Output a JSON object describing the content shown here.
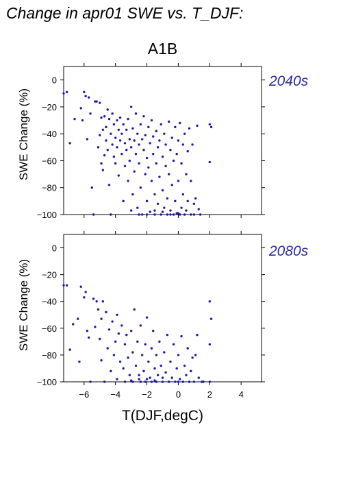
{
  "header": {
    "title": "Change in apr01 SWE vs. T_DJF:",
    "scenario": "A1B"
  },
  "chart_data": [
    {
      "type": "scatter",
      "period_label": "2040s",
      "ylabel": "SWE Change (%)",
      "xlabel": "",
      "xlim": [
        -7.3,
        5.3
      ],
      "ylim": [
        -100,
        10
      ],
      "xticks": [
        -6,
        -4,
        -2,
        0,
        2,
        4
      ],
      "yticks": [
        0,
        -20,
        -40,
        -60,
        -80,
        -100
      ],
      "show_xtick_labels": false,
      "marker_color": "#1c1ca8",
      "grid": false,
      "points": [
        [
          -7.3,
          -10
        ],
        [
          -7.1,
          -9
        ],
        [
          -6.9,
          -47
        ],
        [
          -6.6,
          -29
        ],
        [
          -6.2,
          -21
        ],
        [
          -6.1,
          -30
        ],
        [
          -6.0,
          -9
        ],
        [
          -5.9,
          -12
        ],
        [
          -5.8,
          -44
        ],
        [
          -5.7,
          -13
        ],
        [
          -5.6,
          -25
        ],
        [
          -5.5,
          -80
        ],
        [
          -5.4,
          -100
        ],
        [
          -5.3,
          -16
        ],
        [
          -5.2,
          -16
        ],
        [
          -5.1,
          -50
        ],
        [
          -5.0,
          -41
        ],
        [
          -5.0,
          -17
        ],
        [
          -4.9,
          -28
        ],
        [
          -4.9,
          -62
        ],
        [
          -4.8,
          -37
        ],
        [
          -4.8,
          -67
        ],
        [
          -4.7,
          -56
        ],
        [
          -4.7,
          -27
        ],
        [
          -4.6,
          -35
        ],
        [
          -4.6,
          -45
        ],
        [
          -4.5,
          -52
        ],
        [
          -4.5,
          -22
        ],
        [
          -4.4,
          -78
        ],
        [
          -4.4,
          -29
        ],
        [
          -4.3,
          -40
        ],
        [
          -4.3,
          -100
        ],
        [
          -4.2,
          -48
        ],
        [
          -4.2,
          -25
        ],
        [
          -4.1,
          -57
        ],
        [
          -4.1,
          -33
        ],
        [
          -4.0,
          -43
        ],
        [
          -4.0,
          -62
        ],
        [
          -3.9,
          -30
        ],
        [
          -3.9,
          -50
        ],
        [
          -3.8,
          -37
        ],
        [
          -3.8,
          -71
        ],
        [
          -3.7,
          -45
        ],
        [
          -3.7,
          -28
        ],
        [
          -3.6,
          -55
        ],
        [
          -3.6,
          -40
        ],
        [
          -3.5,
          -90
        ],
        [
          -3.5,
          -33
        ],
        [
          -3.4,
          -47
        ],
        [
          -3.4,
          -64
        ],
        [
          -3.3,
          -37
        ],
        [
          -3.3,
          -52
        ],
        [
          -3.2,
          -29
        ],
        [
          -3.2,
          -75
        ],
        [
          -3.1,
          -44
        ],
        [
          -3.1,
          -60
        ],
        [
          -3.0,
          -20
        ],
        [
          -3.0,
          -50
        ],
        [
          -2.9,
          -36
        ],
        [
          -2.9,
          -85
        ],
        [
          -2.8,
          -45
        ],
        [
          -2.8,
          -68
        ],
        [
          -2.7,
          -25
        ],
        [
          -2.7,
          -55
        ],
        [
          -2.6,
          -40
        ],
        [
          -2.6,
          -95
        ],
        [
          -2.5,
          -48
        ],
        [
          -2.5,
          -62
        ],
        [
          -2.4,
          -33
        ],
        [
          -2.4,
          -80
        ],
        [
          -2.3,
          -44
        ],
        [
          -2.3,
          -100
        ],
        [
          -2.2,
          -52
        ],
        [
          -2.2,
          -27
        ],
        [
          -2.1,
          -70
        ],
        [
          -2.1,
          -41
        ],
        [
          -2.0,
          -58
        ],
        [
          -2.0,
          -90
        ],
        [
          -1.9,
          -35
        ],
        [
          -1.9,
          -65
        ],
        [
          -1.8,
          -47
        ],
        [
          -1.8,
          -98
        ],
        [
          -1.7,
          -30
        ],
        [
          -1.7,
          -75
        ],
        [
          -1.6,
          -55
        ],
        [
          -1.6,
          -42
        ],
        [
          -1.5,
          -85
        ],
        [
          -1.5,
          -100
        ],
        [
          -1.4,
          -38
        ],
        [
          -1.4,
          -62
        ],
        [
          -1.3,
          -50
        ],
        [
          -1.3,
          -92
        ],
        [
          -1.2,
          -45
        ],
        [
          -1.2,
          -72
        ],
        [
          -1.1,
          -33
        ],
        [
          -1.1,
          -100
        ],
        [
          -1.0,
          -57
        ],
        [
          -1.0,
          -82
        ],
        [
          -0.9,
          -40
        ],
        [
          -0.9,
          -95
        ],
        [
          -0.8,
          -64
        ],
        [
          -0.8,
          -48
        ],
        [
          -0.7,
          -88
        ],
        [
          -0.7,
          -100
        ],
        [
          -0.6,
          -31
        ],
        [
          -0.6,
          -70
        ],
        [
          -0.5,
          -52
        ],
        [
          -0.5,
          -97
        ],
        [
          -0.4,
          -43
        ],
        [
          -0.4,
          -78
        ],
        [
          -0.3,
          -60
        ],
        [
          -0.3,
          -100
        ],
        [
          -0.2,
          -35
        ],
        [
          -0.2,
          -90
        ],
        [
          -0.1,
          -55
        ],
        [
          -0.1,
          -99
        ],
        [
          0.0,
          -45
        ],
        [
          0.0,
          -75
        ],
        [
          0.1,
          -32
        ],
        [
          0.1,
          -100
        ],
        [
          0.2,
          -62
        ],
        [
          0.2,
          -95
        ],
        [
          0.3,
          -48
        ],
        [
          0.3,
          -85
        ],
        [
          0.4,
          -40
        ],
        [
          0.4,
          -100
        ],
        [
          0.5,
          -70
        ],
        [
          0.5,
          -97
        ],
        [
          0.6,
          -53
        ],
        [
          0.6,
          -90
        ],
        [
          0.7,
          -36
        ],
        [
          0.8,
          -100
        ],
        [
          0.8,
          -75
        ],
        [
          0.9,
          -48
        ],
        [
          1.0,
          -92
        ],
        [
          1.0,
          -100
        ],
        [
          1.1,
          -88
        ],
        [
          1.2,
          -34
        ],
        [
          1.3,
          -96
        ],
        [
          1.4,
          -100
        ],
        [
          2.0,
          -61
        ],
        [
          2.0,
          -33
        ],
        [
          2.1,
          -35
        ],
        [
          -3.0,
          -97
        ],
        [
          -2.0,
          -100
        ],
        [
          -1.0,
          -98
        ],
        [
          0.0,
          -99
        ],
        [
          -2.5,
          -100
        ],
        [
          -1.5,
          -97
        ],
        [
          -0.5,
          -100
        ]
      ]
    },
    {
      "type": "scatter",
      "period_label": "2080s",
      "ylabel": "SWE Change (%)",
      "xlabel": "T(DJF,degC)",
      "xlim": [
        -7.3,
        5.3
      ],
      "ylim": [
        -100,
        10
      ],
      "xticks": [
        -6,
        -4,
        -2,
        0,
        2,
        4
      ],
      "yticks": [
        0,
        -20,
        -40,
        -60,
        -80,
        -100
      ],
      "show_xtick_labels": true,
      "marker_color": "#1c1ca8",
      "grid": false,
      "points": [
        [
          -7.3,
          -28
        ],
        [
          -7.1,
          -28
        ],
        [
          -6.9,
          -76
        ],
        [
          -6.7,
          -57
        ],
        [
          -6.4,
          -53
        ],
        [
          -6.3,
          -85
        ],
        [
          -6.2,
          -29
        ],
        [
          -6.0,
          -37
        ],
        [
          -5.9,
          -33
        ],
        [
          -5.8,
          -62
        ],
        [
          -5.7,
          -67
        ],
        [
          -5.6,
          -100
        ],
        [
          -5.4,
          -38
        ],
        [
          -5.3,
          -59
        ],
        [
          -5.2,
          -40
        ],
        [
          -5.1,
          -46
        ],
        [
          -5.0,
          -68
        ],
        [
          -4.9,
          -84
        ],
        [
          -4.9,
          -53
        ],
        [
          -4.8,
          -40
        ],
        [
          -4.7,
          -100
        ],
        [
          -4.6,
          -48
        ],
        [
          -4.5,
          -75
        ],
        [
          -4.4,
          -61
        ],
        [
          -4.3,
          -92
        ],
        [
          -4.2,
          -55
        ],
        [
          -4.1,
          -80
        ],
        [
          -4.0,
          -70
        ],
        [
          -3.9,
          -50
        ],
        [
          -3.9,
          -98
        ],
        [
          -3.8,
          -64
        ],
        [
          -3.7,
          -85
        ],
        [
          -3.6,
          -58
        ],
        [
          -3.5,
          -90
        ],
        [
          -3.4,
          -72
        ],
        [
          -3.4,
          -100
        ],
        [
          -3.3,
          -65
        ],
        [
          -3.2,
          -82
        ],
        [
          -3.1,
          -95
        ],
        [
          -3.0,
          -62
        ],
        [
          -2.9,
          -78
        ],
        [
          -2.9,
          -100
        ],
        [
          -2.8,
          -46
        ],
        [
          -2.7,
          -88
        ],
        [
          -2.6,
          -70
        ],
        [
          -2.5,
          -95
        ],
        [
          -2.4,
          -58
        ],
        [
          -2.4,
          -100
        ],
        [
          -2.3,
          -80
        ],
        [
          -2.2,
          -92
        ],
        [
          -2.1,
          -72
        ],
        [
          -2.1,
          -100
        ],
        [
          -2.0,
          -52
        ],
        [
          -1.9,
          -85
        ],
        [
          -1.8,
          -97
        ],
        [
          -1.7,
          -75
        ],
        [
          -1.7,
          -100
        ],
        [
          -1.6,
          -62
        ],
        [
          -1.5,
          -90
        ],
        [
          -1.4,
          -80
        ],
        [
          -1.4,
          -100
        ],
        [
          -1.3,
          -95
        ],
        [
          -1.2,
          -70
        ],
        [
          -1.1,
          -88
        ],
        [
          -1.0,
          -100
        ],
        [
          -0.9,
          -78
        ],
        [
          -0.8,
          -93
        ],
        [
          -0.7,
          -65
        ],
        [
          -0.6,
          -100
        ],
        [
          -0.5,
          -85
        ],
        [
          -0.4,
          -97
        ],
        [
          -0.3,
          -72
        ],
        [
          -0.2,
          -100
        ],
        [
          -0.1,
          -90
        ],
        [
          0.0,
          -80
        ],
        [
          0.1,
          -98
        ],
        [
          0.2,
          -66
        ],
        [
          0.3,
          -100
        ],
        [
          0.4,
          -88
        ],
        [
          0.5,
          -95
        ],
        [
          0.6,
          -75
        ],
        [
          0.7,
          -100
        ],
        [
          0.8,
          -92
        ],
        [
          0.9,
          -82
        ],
        [
          1.0,
          -100
        ],
        [
          1.1,
          -80
        ],
        [
          1.2,
          -65
        ],
        [
          1.3,
          -97
        ],
        [
          1.5,
          -100
        ],
        [
          1.6,
          -100
        ],
        [
          2.0,
          -40
        ],
        [
          2.1,
          -53
        ],
        [
          2.0,
          -72
        ],
        [
          2.0,
          -100
        ],
        [
          -3.0,
          -99
        ],
        [
          -2.0,
          -98
        ],
        [
          -1.0,
          -97
        ],
        [
          0.0,
          -100
        ],
        [
          -2.5,
          -98
        ],
        [
          -1.5,
          -99
        ]
      ]
    }
  ]
}
